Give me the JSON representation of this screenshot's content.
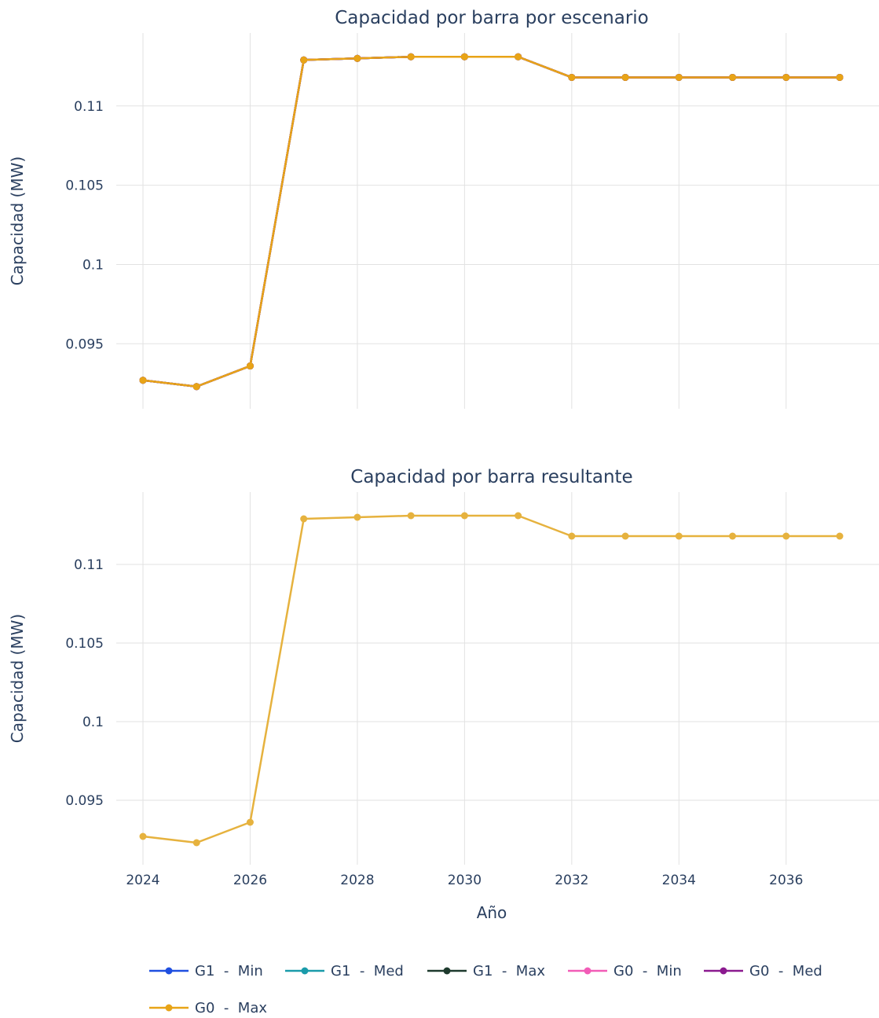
{
  "chart_data": [
    {
      "type": "line",
      "title": "Capacidad por barra por escenario",
      "xlabel": "",
      "ylabel": "Capacidad (MW)",
      "xlim": [
        2024,
        2037
      ],
      "ylim": [
        0.0909,
        0.1146
      ],
      "x_ticks": [
        "2024",
        "2026",
        "2028",
        "2030",
        "2032",
        "2034",
        "2036"
      ],
      "y_ticks": [
        "0.095",
        "0.1",
        "0.105",
        "0.11"
      ],
      "grid": true,
      "x": [
        2024,
        2025,
        2026,
        2027,
        2028,
        2029,
        2030,
        2031,
        2032,
        2033,
        2034,
        2035,
        2036,
        2037
      ],
      "series": [
        {
          "name": "G1  -  Min",
          "color": "#1f4fe0",
          "values": [
            0.0927,
            0.0923,
            0.0936,
            0.1129,
            0.113,
            0.1131,
            0.1131,
            0.1131,
            0.1118,
            0.1118,
            0.1118,
            0.1118,
            0.1118,
            0.1118
          ]
        },
        {
          "name": "G1  -  Med",
          "color": "#1a9baa",
          "values": [
            0.0927,
            0.0923,
            0.0936,
            0.1129,
            0.113,
            0.1131,
            0.1131,
            0.1131,
            0.1118,
            0.1118,
            0.1118,
            0.1118,
            0.1118,
            0.1118
          ]
        },
        {
          "name": "G1  -  Max",
          "color": "#1e3a2e",
          "values": [
            0.0927,
            0.0923,
            0.0936,
            0.1129,
            0.113,
            0.1131,
            0.1131,
            0.1131,
            0.1118,
            0.1118,
            0.1118,
            0.1118,
            0.1118,
            0.1118
          ]
        },
        {
          "name": "G0  -  Min",
          "color": "#f25cb7",
          "values": [
            0.0927,
            0.0923,
            0.0936,
            0.1129,
            0.113,
            0.1131,
            0.1131,
            0.1131,
            0.1118,
            0.1118,
            0.1118,
            0.1118,
            0.1118,
            0.1118
          ]
        },
        {
          "name": "G0  -  Med",
          "color": "#8b1a8f",
          "values": [
            0.0927,
            0.0923,
            0.0936,
            0.1129,
            0.113,
            0.1131,
            0.1131,
            0.1131,
            0.1118,
            0.1118,
            0.1118,
            0.1118,
            0.1118,
            0.1118
          ]
        },
        {
          "name": "G0  -  Max",
          "color": "#e8a417",
          "values": [
            0.0927,
            0.0923,
            0.0936,
            0.1129,
            0.113,
            0.1131,
            0.1131,
            0.1131,
            0.1118,
            0.1118,
            0.1118,
            0.1118,
            0.1118,
            0.1118
          ]
        }
      ],
      "legend": "bottom"
    },
    {
      "type": "line",
      "title": "Capacidad por barra resultante",
      "xlabel": "Año",
      "ylabel": "Capacidad (MW)",
      "xlim": [
        2024,
        2037
      ],
      "ylim": [
        0.0909,
        0.1146
      ],
      "x_ticks": [
        "2024",
        "2026",
        "2028",
        "2030",
        "2032",
        "2034",
        "2036"
      ],
      "y_ticks": [
        "0.095",
        "0.1",
        "0.105",
        "0.11"
      ],
      "grid": true,
      "x": [
        2024,
        2025,
        2026,
        2027,
        2028,
        2029,
        2030,
        2031,
        2032,
        2033,
        2034,
        2035,
        2036,
        2037
      ],
      "series": [
        {
          "color": "#e6b23e",
          "values": [
            0.0927,
            0.0923,
            0.0936,
            0.1129,
            0.113,
            0.1131,
            0.1131,
            0.1131,
            0.1118,
            0.1118,
            0.1118,
            0.1118,
            0.1118,
            0.1118
          ]
        }
      ]
    }
  ]
}
